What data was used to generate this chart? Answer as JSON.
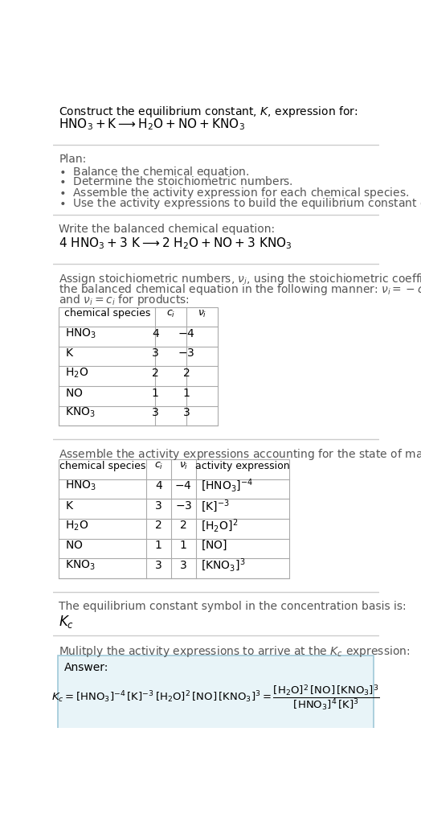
{
  "bg_color": "#ffffff",
  "text_color": "#000000",
  "gray_color": "#555555",
  "table_border": "#aaaaaa",
  "answer_bg": "#e8f4f8",
  "answer_border": "#a0c8d8",
  "separator_color": "#cccccc",
  "body_fontsize": 10.0,
  "small_fontsize": 9.0,
  "title_line1": "Construct the equilibrium constant, $K$, expression for:",
  "title_line2": "$\\mathrm{HNO_3 + K \\longrightarrow H_2O + NO + KNO_3}$",
  "plan_header": "Plan:",
  "plan_items": [
    "\\bullet  Balance the chemical equation.",
    "\\bullet  Determine the stoichiometric numbers.",
    "\\bullet  Assemble the activity expression for each chemical species.",
    "\\bullet  Use the activity expressions to build the equilibrium constant expression."
  ],
  "balanced_header": "Write the balanced chemical equation:",
  "balanced_eq": "$4\\ \\mathrm{HNO_3} + 3\\ \\mathrm{K} \\longrightarrow 2\\ \\mathrm{H_2O} + \\mathrm{NO} + 3\\ \\mathrm{KNO_3}$",
  "stoich_lines": [
    "Assign stoichiometric numbers, $\\nu_i$, using the stoichiometric coefficients, $c_i$, from",
    "the balanced chemical equation in the following manner: $\\nu_i = -c_i$ for reactants",
    "and $\\nu_i = c_i$ for products:"
  ],
  "table1_col_headers": [
    "chemical species",
    "$c_i$",
    "$\\nu_i$"
  ],
  "table1_col_italic": [
    false,
    true,
    true
  ],
  "table1_rows": [
    [
      "$\\mathrm{HNO_3}$",
      "4",
      "$-4$"
    ],
    [
      "$\\mathrm{K}$",
      "3",
      "$-3$"
    ],
    [
      "$\\mathrm{H_2O}$",
      "2",
      "2"
    ],
    [
      "$\\mathrm{NO}$",
      "1",
      "1"
    ],
    [
      "$\\mathrm{KNO_3}$",
      "3",
      "3"
    ]
  ],
  "activity_header": "Assemble the activity expressions accounting for the state of matter and $\\nu_i$:",
  "table2_col_headers": [
    "chemical species",
    "$c_i$",
    "$\\nu_i$",
    "activity expression"
  ],
  "table2_col_italic": [
    false,
    true,
    true,
    false
  ],
  "table2_rows": [
    [
      "$\\mathrm{HNO_3}$",
      "4",
      "$-4$",
      "$[\\mathrm{HNO_3}]^{-4}$"
    ],
    [
      "$\\mathrm{K}$",
      "3",
      "$-3$",
      "$[\\mathrm{K}]^{-3}$"
    ],
    [
      "$\\mathrm{H_2O}$",
      "2",
      "2",
      "$[\\mathrm{H_2O}]^{2}$"
    ],
    [
      "$\\mathrm{NO}$",
      "1",
      "1",
      "$[\\mathrm{NO}]$"
    ],
    [
      "$\\mathrm{KNO_3}$",
      "3",
      "3",
      "$[\\mathrm{KNO_3}]^{3}$"
    ]
  ],
  "kc_header": "The equilibrium constant symbol in the concentration basis is:",
  "kc_symbol": "$K_c$",
  "multiply_header": "Mulitply the activity expressions to arrive at the $K_c$ expression:",
  "answer_label": "Answer:",
  "answer_eq_left": "$K_c = [\\mathrm{HNO_3}]^{-4}\\,[\\mathrm{K}]^{-3}\\,[\\mathrm{H_2O}]^{2}\\,[\\mathrm{NO}]\\,[\\mathrm{KNO_3}]^{3}$",
  "answer_eq_right": "$\\dfrac{[\\mathrm{H_2O}]^{2}\\,[\\mathrm{NO}]\\,[\\mathrm{KNO_3}]^{3}}{[\\mathrm{HNO_3}]^{4}\\,[\\mathrm{K}]^{3}}$"
}
